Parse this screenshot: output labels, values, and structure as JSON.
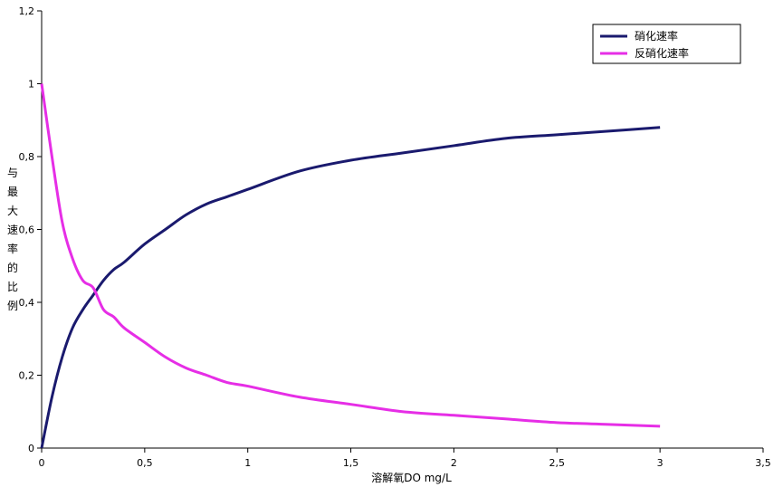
{
  "chart_data": {
    "type": "line",
    "title": "",
    "xlabel": "溶解氧DO mg/L",
    "ylabel": "与最大速率的比例",
    "xlim": [
      0,
      3.5
    ],
    "ylim": [
      0,
      1.2
    ],
    "x_ticks": [
      "0",
      "0,5",
      "1",
      "1,5",
      "2",
      "2,5",
      "3",
      "3,5"
    ],
    "y_ticks": [
      "0",
      "0,2",
      "0,4",
      "0,6",
      "0,8",
      "1",
      "1,2"
    ],
    "grid": false,
    "legend_position": "top-right",
    "x": [
      0,
      0.05,
      0.1,
      0.15,
      0.2,
      0.25,
      0.3,
      0.35,
      0.4,
      0.5,
      0.6,
      0.7,
      0.8,
      0.9,
      1.0,
      1.25,
      1.5,
      1.75,
      2.0,
      2.25,
      2.5,
      2.75,
      3.0
    ],
    "series": [
      {
        "name": "硝化速率",
        "color": "#1a1a6e",
        "values": [
          0,
          0.14,
          0.25,
          0.33,
          0.38,
          0.42,
          0.46,
          0.49,
          0.51,
          0.56,
          0.6,
          0.64,
          0.67,
          0.69,
          0.71,
          0.76,
          0.79,
          0.81,
          0.83,
          0.85,
          0.86,
          0.87,
          0.88
        ]
      },
      {
        "name": "反硝化速率",
        "color": "#e62ee6",
        "values": [
          1.0,
          0.8,
          0.62,
          0.52,
          0.46,
          0.44,
          0.38,
          0.36,
          0.33,
          0.29,
          0.25,
          0.22,
          0.2,
          0.18,
          0.17,
          0.14,
          0.12,
          0.1,
          0.09,
          0.08,
          0.07,
          0.065,
          0.06
        ]
      }
    ]
  }
}
